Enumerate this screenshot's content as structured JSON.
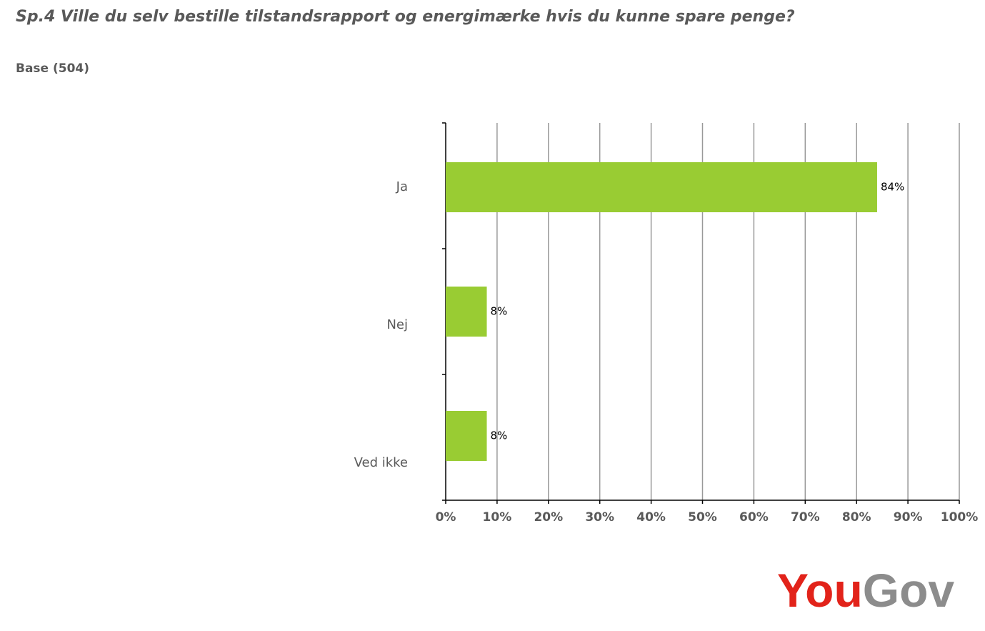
{
  "chart_data": {
    "type": "bar",
    "orientation": "horizontal",
    "title": "Sp.4 Ville du selv bestille tilstandsrapport og energimærke hvis du kunne spare penge?",
    "subtitle": "Base (504)",
    "categories": [
      "Ja",
      "Nej",
      "Ved ikke"
    ],
    "values": [
      84,
      8,
      8
    ],
    "value_labels": [
      "84%",
      "8%",
      "8%"
    ],
    "color": "#99cc33",
    "xlim": [
      0,
      100
    ],
    "xticks": [
      {
        "value": 0,
        "label": "0%"
      },
      {
        "value": 10,
        "label": "10%"
      },
      {
        "value": 20,
        "label": "20%"
      },
      {
        "value": 30,
        "label": "30%"
      },
      {
        "value": 40,
        "label": "40%"
      },
      {
        "value": 50,
        "label": "50%"
      },
      {
        "value": 60,
        "label": "60%"
      },
      {
        "value": 70,
        "label": "70%"
      },
      {
        "value": 80,
        "label": "80%"
      },
      {
        "value": 90,
        "label": "90%"
      },
      {
        "value": 100,
        "label": "100%"
      }
    ],
    "grid": true
  },
  "logo": [
    "You",
    "Gov"
  ]
}
